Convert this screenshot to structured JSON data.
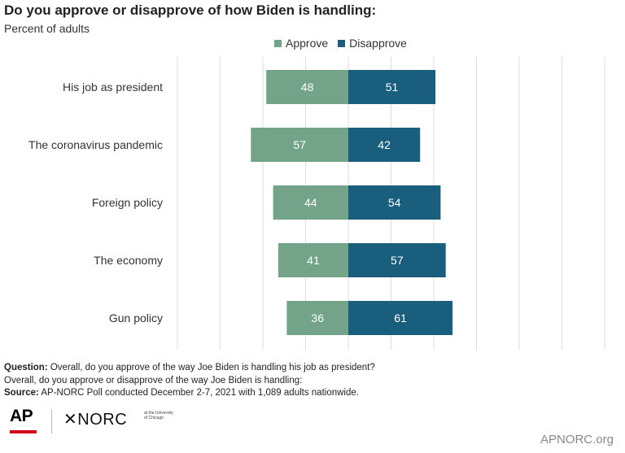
{
  "title": "Do you approve or disapprove of how Biden is handling:",
  "subtitle": "Percent of adults",
  "colors": {
    "approve": "#73a48a",
    "disapprove": "#1a5e7e",
    "grid": "#dddddd"
  },
  "chart_data": {
    "type": "bar",
    "orientation": "horizontal-diverging",
    "categories": [
      "His job as president",
      "The coronavirus pandemic",
      "Foreign policy",
      "The economy",
      "Gun policy"
    ],
    "series": [
      {
        "name": "Approve",
        "values": [
          48,
          57,
          44,
          41,
          36
        ]
      },
      {
        "name": "Disapprove",
        "values": [
          51,
          42,
          54,
          57,
          61
        ]
      }
    ],
    "legend_position": "top",
    "grid": true
  },
  "footer": {
    "question_label": "Question:",
    "question_text": " Overall, do you approve of the way Joe Biden is handling his job as president?",
    "question_line2": "Overall, do you approve or disapprove of the way Joe Biden is handling:",
    "source_label": "Source:",
    "source_text": " AP-NORC Poll conducted December 2-7, 2021 with 1,089 adults nationwide."
  },
  "logos": {
    "ap": "AP",
    "norc": "✕NORC",
    "norc_sub": "at the University of Chicago"
  },
  "site": "APNORC.org"
}
